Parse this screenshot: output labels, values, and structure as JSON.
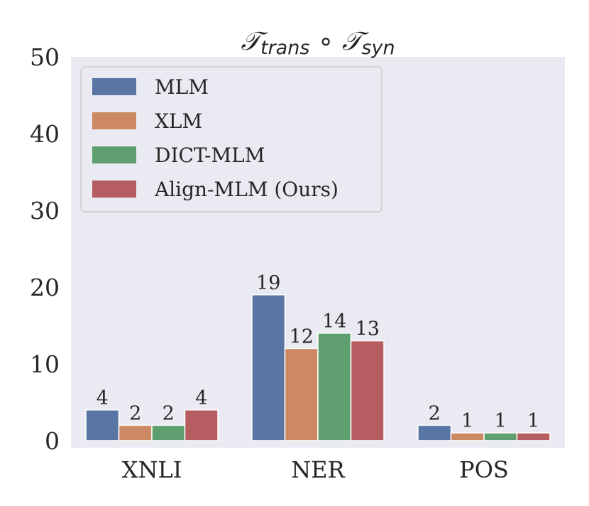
{
  "chart_data": {
    "type": "bar",
    "title_main": "𝒯",
    "title_sub1": "trans",
    "title_op": " ∘ ",
    "title_main2": "𝒯",
    "title_sub2": "syn",
    "categories": [
      "XNLI",
      "NER",
      "POS"
    ],
    "series": [
      {
        "name": "MLM",
        "color": "#5875a4",
        "values": [
          4,
          19,
          2
        ]
      },
      {
        "name": "XLM",
        "color": "#cc8963",
        "values": [
          2,
          12,
          1
        ]
      },
      {
        "name": "DICT-MLM",
        "color": "#5f9e6e",
        "values": [
          2,
          14,
          1
        ]
      },
      {
        "name": "Align-MLM (Ours)",
        "color": "#b55d60",
        "values": [
          4,
          13,
          1
        ]
      }
    ],
    "ylim": [
      -1,
      50
    ],
    "yticks": [
      "0",
      "10",
      "20",
      "30",
      "40",
      "50"
    ],
    "grid": false,
    "legend_position": "top-left",
    "background": "#eaeaf2"
  }
}
